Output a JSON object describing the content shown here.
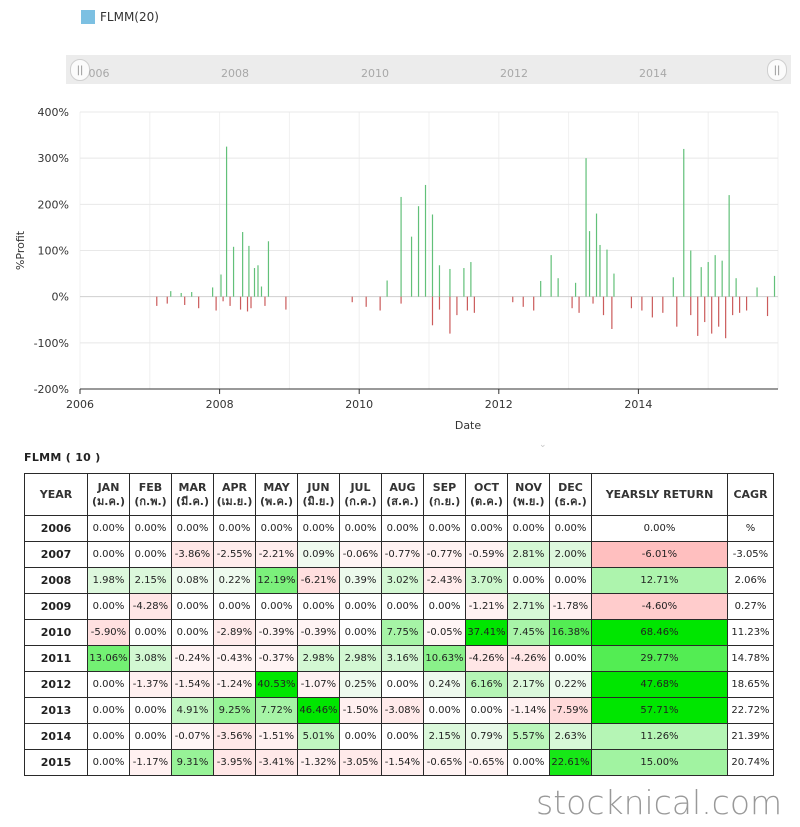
{
  "legend": {
    "label": "FLMM(20)",
    "color": "#7cc0e2"
  },
  "navigator": {
    "years": [
      "006",
      "2008",
      "2010",
      "2012",
      "2014"
    ],
    "handle_glyph": "||"
  },
  "chart_data": {
    "type": "bar",
    "series_name": "FLMM(20)",
    "xlabel": "Date",
    "ylabel": "%Profit",
    "ylim": [
      -200,
      400
    ],
    "yticks": [
      "400%",
      "300%",
      "200%",
      "100%",
      "0%",
      "-100%",
      "-200%"
    ],
    "xticks": [
      "2006",
      "2008",
      "2010",
      "2012",
      "2014"
    ],
    "xlim": [
      2006.0,
      2016.0
    ],
    "positive_color": "#62c079",
    "negative_color": "#cb5b5b",
    "grid": true,
    "x": [
      2007.3,
      2007.45,
      2007.6,
      2007.9,
      2008.02,
      2008.1,
      2008.2,
      2008.33,
      2008.42,
      2008.5,
      2008.55,
      2008.6,
      2008.7,
      2010.4,
      2010.6,
      2010.75,
      2010.85,
      2010.95,
      2011.05,
      2011.15,
      2011.3,
      2011.5,
      2011.6,
      2012.6,
      2012.75,
      2012.85,
      2013.1,
      2013.25,
      2013.3,
      2013.4,
      2013.45,
      2013.55,
      2013.65,
      2014.5,
      2014.65,
      2014.75,
      2014.9,
      2015.0,
      2015.1,
      2015.2,
      2015.3,
      2015.4,
      2015.7,
      2015.95,
      2007.1,
      2007.25,
      2007.5,
      2007.7,
      2007.95,
      2008.05,
      2008.15,
      2008.3,
      2008.4,
      2008.45,
      2008.65,
      2008.95,
      2009.9,
      2010.1,
      2010.3,
      2010.6,
      2011.05,
      2011.15,
      2011.3,
      2011.4,
      2011.55,
      2011.65,
      2012.2,
      2012.35,
      2012.5,
      2013.05,
      2013.15,
      2013.35,
      2013.5,
      2013.62,
      2013.9,
      2014.05,
      2014.2,
      2014.35,
      2014.55,
      2014.75,
      2014.85,
      2014.95,
      2015.05,
      2015.15,
      2015.25,
      2015.35,
      2015.45,
      2015.55,
      2015.85
    ],
    "values": [
      12,
      8,
      10,
      20,
      48,
      325,
      108,
      140,
      110,
      62,
      68,
      22,
      120,
      35,
      216,
      130,
      196,
      242,
      178,
      68,
      60,
      62,
      75,
      34,
      90,
      40,
      30,
      300,
      142,
      180,
      112,
      102,
      50,
      42,
      320,
      100,
      64,
      75,
      90,
      78,
      220,
      40,
      20,
      45,
      -20,
      -15,
      -18,
      -25,
      -30,
      -10,
      -20,
      -28,
      -32,
      -25,
      -20,
      -28,
      -12,
      -22,
      -30,
      -15,
      -62,
      -28,
      -80,
      -40,
      -30,
      -35,
      -12,
      -22,
      -30,
      -25,
      -35,
      -15,
      -40,
      -70,
      -25,
      -30,
      -45,
      -35,
      -65,
      -40,
      -85,
      -55,
      -80,
      -65,
      -90,
      -40,
      -35,
      -30,
      -42
    ]
  },
  "table": {
    "title": "FLMM ( 10 )",
    "header_year": "YEAR",
    "header_yearly": "YEARSLY RETURN",
    "header_cagr": "CAGR",
    "months": [
      [
        "JAN",
        "(ม.ค.)"
      ],
      [
        "FEB",
        "(ก.พ.)"
      ],
      [
        "MAR",
        "(มี.ค.)"
      ],
      [
        "APR",
        "(เม.ย.)"
      ],
      [
        "MAY",
        "(พ.ค.)"
      ],
      [
        "JUN",
        "(มิ.ย.)"
      ],
      [
        "JUL",
        "(ก.ค.)"
      ],
      [
        "AUG",
        "(ส.ค.)"
      ],
      [
        "SEP",
        "(ก.ย.)"
      ],
      [
        "OCT",
        "(ต.ค.)"
      ],
      [
        "NOV",
        "(พ.ย.)"
      ],
      [
        "DEC",
        "(ธ.ค.)"
      ]
    ],
    "rows": [
      {
        "year": "2006",
        "m": [
          "0.00%",
          "0.00%",
          "0.00%",
          "0.00%",
          "0.00%",
          "0.00%",
          "0.00%",
          "0.00%",
          "0.00%",
          "0.00%",
          "0.00%",
          "0.00%"
        ],
        "yearly": "0.00%",
        "cagr": "%"
      },
      {
        "year": "2007",
        "m": [
          "0.00%",
          "0.00%",
          "-3.86%",
          "-2.55%",
          "-2.21%",
          "0.09%",
          "-0.06%",
          "-0.77%",
          "-0.77%",
          "-0.59%",
          "2.81%",
          "2.00%"
        ],
        "yearly": "-6.01%",
        "cagr": "-3.05%"
      },
      {
        "year": "2008",
        "m": [
          "1.98%",
          "2.15%",
          "0.08%",
          "0.22%",
          "12.19%",
          "-6.21%",
          "0.39%",
          "3.02%",
          "-2.43%",
          "3.70%",
          "0.00%",
          "0.00%"
        ],
        "yearly": "12.71%",
        "cagr": "2.06%"
      },
      {
        "year": "2009",
        "m": [
          "0.00%",
          "-4.28%",
          "0.00%",
          "0.00%",
          "0.00%",
          "0.00%",
          "0.00%",
          "0.00%",
          "0.00%",
          "-1.21%",
          "2.71%",
          "-1.78%"
        ],
        "yearly": "-4.60%",
        "cagr": "0.27%"
      },
      {
        "year": "2010",
        "m": [
          "-5.90%",
          "0.00%",
          "0.00%",
          "-2.89%",
          "-0.39%",
          "-0.39%",
          "0.00%",
          "7.75%",
          "-0.05%",
          "37.41%",
          "7.45%",
          "16.38%"
        ],
        "yearly": "68.46%",
        "cagr": "11.23%"
      },
      {
        "year": "2011",
        "m": [
          "13.06%",
          "3.08%",
          "-0.24%",
          "-0.43%",
          "-0.37%",
          "2.98%",
          "2.98%",
          "3.16%",
          "10.63%",
          "-4.26%",
          "-4.26%",
          "0.00%"
        ],
        "yearly": "29.77%",
        "cagr": "14.78%"
      },
      {
        "year": "2012",
        "m": [
          "0.00%",
          "-1.37%",
          "-1.54%",
          "-1.24%",
          "40.53%",
          "-1.07%",
          "0.25%",
          "0.00%",
          "0.24%",
          "6.16%",
          "2.17%",
          "0.22%"
        ],
        "yearly": "47.68%",
        "cagr": "18.65%"
      },
      {
        "year": "2013",
        "m": [
          "0.00%",
          "0.00%",
          "4.91%",
          "9.25%",
          "7.72%",
          "46.46%",
          "-1.50%",
          "-3.08%",
          "0.00%",
          "0.00%",
          "-1.14%",
          "-7.59%"
        ],
        "yearly": "57.71%",
        "cagr": "22.72%"
      },
      {
        "year": "2014",
        "m": [
          "0.00%",
          "0.00%",
          "-0.07%",
          "-3.56%",
          "-1.51%",
          "5.01%",
          "0.00%",
          "0.00%",
          "2.15%",
          "0.79%",
          "5.57%",
          "2.63%"
        ],
        "yearly": "11.26%",
        "cagr": "21.39%"
      },
      {
        "year": "2015",
        "m": [
          "0.00%",
          "-1.17%",
          "9.31%",
          "-3.95%",
          "-3.41%",
          "-1.32%",
          "-3.05%",
          "-1.54%",
          "-0.65%",
          "-0.65%",
          "0.00%",
          "22.61%"
        ],
        "yearly": "15.00%",
        "cagr": "20.74%"
      }
    ]
  },
  "watermark": "stocknical.com"
}
